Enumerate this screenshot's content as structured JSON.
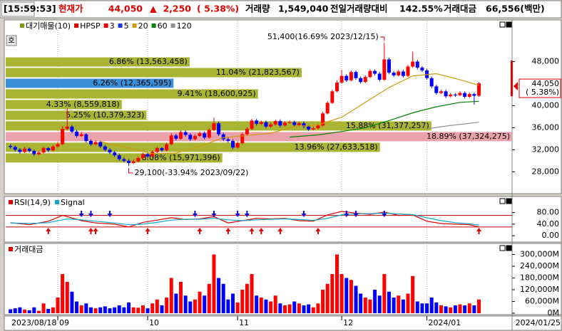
{
  "header": {
    "time": "[15:59:53]",
    "price_title": "현재가",
    "price": "44,050",
    "arrow": "▲",
    "change": "2,250",
    "change_pct": "( 5.38%)",
    "volume_title": "거래량",
    "volume": "1,549,040",
    "ratio_title": "전일거래량대비",
    "ratio": "142.55%",
    "amount_title": "거래대금",
    "amount": "66,556(백만)"
  },
  "chart_data": [
    {
      "type": "candlestick",
      "side_button": "호",
      "up_color": "#ff0000",
      "down_color": "#0000ff",
      "series": [
        {
          "name": "대기매물(10)",
          "color": "#7f9a10"
        },
        {
          "name": "HPSP",
          "color": "#e00000"
        },
        {
          "name": "3",
          "color": "#e00000"
        },
        {
          "name": "5",
          "color": "#1c3cdc"
        },
        {
          "name": "20",
          "color": "#d09a10",
          "x": [
            19,
            25,
            30,
            35,
            40,
            45,
            50,
            55,
            60,
            65,
            70,
            75,
            80,
            85,
            90,
            95,
            99
          ],
          "values": [
            33500,
            32300,
            31300,
            31400,
            32600,
            34200,
            34600,
            35000,
            36200,
            36500,
            37900,
            40600,
            43300,
            45400,
            45800,
            44700,
            43700
          ]
        },
        {
          "name": "60",
          "color": "#008000",
          "x": [
            59,
            65,
            70,
            75,
            80,
            85,
            90,
            95,
            99
          ],
          "values": [
            34300,
            34700,
            35300,
            36000,
            37300,
            38700,
            39800,
            40600,
            40800
          ]
        },
        {
          "name": "120",
          "color": "#909090",
          "x": [
            88,
            92,
            96,
            99
          ],
          "values": [
            35800,
            36300,
            36700,
            37000
          ]
        }
      ],
      "candles": [
        [
          32700,
          33000,
          32200,
          32500
        ],
        [
          32500,
          32800,
          31700,
          32000
        ],
        [
          32000,
          32300,
          31300,
          31600
        ],
        [
          31600,
          32500,
          31400,
          32200
        ],
        [
          32200,
          32400,
          31500,
          31800
        ],
        [
          31800,
          32000,
          30900,
          31200
        ],
        [
          31200,
          31800,
          31000,
          31500
        ],
        [
          31500,
          32600,
          31300,
          32300
        ],
        [
          32300,
          32500,
          31600,
          31900
        ],
        [
          31900,
          32900,
          31700,
          32600
        ],
        [
          32600,
          33400,
          32400,
          33000
        ],
        [
          33000,
          36300,
          32800,
          35800
        ],
        [
          35800,
          39500,
          35500,
          36200
        ],
        [
          36200,
          36500,
          35000,
          35300
        ],
        [
          35300,
          35600,
          34200,
          34500
        ],
        [
          34500,
          35200,
          34300,
          34800
        ],
        [
          34800,
          35000,
          33300,
          33600
        ],
        [
          33600,
          33900,
          32700,
          33000
        ],
        [
          33000,
          33700,
          32800,
          33400
        ],
        [
          33400,
          33600,
          32300,
          32600
        ],
        [
          32600,
          32900,
          31700,
          32000
        ],
        [
          32000,
          32300,
          31200,
          31500
        ],
        [
          31500,
          31800,
          30700,
          31000
        ],
        [
          31000,
          31300,
          30000,
          30300
        ],
        [
          30300,
          30600,
          29700,
          30000
        ],
        [
          30000,
          30300,
          29100,
          29600
        ],
        [
          29600,
          30200,
          29400,
          29900
        ],
        [
          29900,
          30800,
          29700,
          30500
        ],
        [
          30500,
          31500,
          30300,
          31200
        ],
        [
          31200,
          31400,
          30500,
          30800
        ],
        [
          30800,
          31900,
          30600,
          31600
        ],
        [
          31600,
          32600,
          31400,
          32300
        ],
        [
          32300,
          32500,
          31600,
          31900
        ],
        [
          31900,
          33300,
          31700,
          33000
        ],
        [
          33000,
          35000,
          32800,
          34600
        ],
        [
          34600,
          34900,
          33700,
          34000
        ],
        [
          34000,
          35500,
          33800,
          35200
        ],
        [
          35200,
          35500,
          34400,
          34700
        ],
        [
          34700,
          35000,
          33600,
          33900
        ],
        [
          33900,
          34800,
          33700,
          34500
        ],
        [
          34500,
          35300,
          34300,
          35000
        ],
        [
          35000,
          35300,
          33900,
          34200
        ],
        [
          34200,
          35900,
          34000,
          35600
        ],
        [
          35600,
          37800,
          35400,
          36800
        ],
        [
          36800,
          37100,
          34500,
          34800
        ],
        [
          34800,
          35100,
          33600,
          33900
        ],
        [
          33900,
          34200,
          33300,
          33600
        ],
        [
          33600,
          33900,
          32100,
          32400
        ],
        [
          32400,
          33500,
          32200,
          33200
        ],
        [
          33200,
          35100,
          33000,
          34800
        ],
        [
          34800,
          36100,
          34600,
          35800
        ],
        [
          35800,
          37600,
          35600,
          37300
        ],
        [
          37300,
          37600,
          36400,
          36700
        ],
        [
          36700,
          37300,
          36500,
          37000
        ],
        [
          37000,
          37300,
          35900,
          36200
        ],
        [
          36200,
          36900,
          36000,
          36600
        ],
        [
          36600,
          37500,
          36400,
          37200
        ],
        [
          37200,
          37500,
          36100,
          36400
        ],
        [
          36400,
          37200,
          36200,
          36900
        ],
        [
          36900,
          37300,
          36700,
          37000
        ],
        [
          37000,
          37300,
          36200,
          36500
        ],
        [
          36500,
          37100,
          36300,
          36800
        ],
        [
          36800,
          37100,
          35900,
          36200
        ],
        [
          36200,
          36500,
          35400,
          35700
        ],
        [
          35700,
          36200,
          35500,
          35900
        ],
        [
          35900,
          36700,
          35700,
          36400
        ],
        [
          36400,
          38900,
          36200,
          38600
        ],
        [
          38600,
          40800,
          38400,
          40500
        ],
        [
          40500,
          42900,
          40300,
          42600
        ],
        [
          42600,
          44600,
          42400,
          44200
        ],
        [
          44200,
          46500,
          44000,
          45400
        ],
        [
          45400,
          45700,
          44300,
          44600
        ],
        [
          44600,
          46400,
          44400,
          46100
        ],
        [
          46100,
          46400,
          44700,
          45000
        ],
        [
          45000,
          45300,
          44000,
          44300
        ],
        [
          44300,
          45500,
          44100,
          45200
        ],
        [
          45200,
          46600,
          45000,
          46300
        ],
        [
          46300,
          46600,
          45500,
          45800
        ],
        [
          45800,
          46100,
          44400,
          44700
        ],
        [
          44700,
          51400,
          44500,
          48400
        ],
        [
          48400,
          48700,
          45700,
          46000
        ],
        [
          46000,
          46300,
          45200,
          45500
        ],
        [
          45500,
          46500,
          45300,
          46200
        ],
        [
          46200,
          46500,
          45100,
          45400
        ],
        [
          45400,
          47400,
          45200,
          47100
        ],
        [
          47100,
          49800,
          46900,
          48000
        ],
        [
          48000,
          48300,
          46600,
          46900
        ],
        [
          46900,
          47200,
          46100,
          46400
        ],
        [
          46400,
          46700,
          44700,
          45000
        ],
        [
          45000,
          45300,
          43200,
          43500
        ],
        [
          43500,
          43800,
          42000,
          42300
        ],
        [
          42300,
          42900,
          42100,
          42600
        ],
        [
          42600,
          42900,
          41400,
          41700
        ],
        [
          41700,
          42300,
          41500,
          42000
        ],
        [
          42000,
          42300,
          41600,
          41900
        ],
        [
          41900,
          42600,
          41700,
          42300
        ],
        [
          42300,
          42600,
          41300,
          41600
        ],
        [
          41600,
          42400,
          41400,
          42100
        ],
        [
          42100,
          42400,
          40200,
          41800
        ],
        [
          41800,
          44300,
          41600,
          44050
        ]
      ],
      "xlim": [
        -1,
        106
      ],
      "ylim": [
        24300,
        55300
      ],
      "yticks": [
        {
          "value": 28000,
          "label": "28,000"
        },
        {
          "value": 32000,
          "label": "32,000"
        },
        {
          "value": 36000,
          "label": "36,000"
        },
        {
          "value": 40000,
          "label": "40,000"
        },
        {
          "value": 48000,
          "label": "48,000"
        }
      ],
      "volume_profile": {
        "bins": [
          48900,
          46970,
          45030,
          43100,
          41160,
          39230,
          37290,
          35350,
          33420,
          31480,
          29550
        ],
        "values": [
          6.86,
          11.04,
          6.26,
          9.41,
          4.33,
          5.25,
          15.88,
          18.89,
          13.96,
          8.08
        ],
        "value_labels": [
          "6.86% (13,563,458)",
          "11.04% (21,823,567)",
          "6.26% (12,365,595)",
          "9.41% (18,600,925)",
          "4.33% (8,559,818)",
          "5.25% (10,379,323)",
          "15.88% (31,377,257)",
          "18.89% (37,324,275)",
          "13.96% (27,633,518)",
          "8.08% (15,971,396)"
        ],
        "colors": [
          "#a8b432",
          "#a8b432",
          "#3b8fd6",
          "#a8b432",
          "#a8b432",
          "#a8b432",
          "#a8b432",
          "#eaa2aa",
          "#a8b432",
          "#a8b432"
        ]
      },
      "annotations": [
        {
          "text": "51,400(16.69% 2023/12/15)",
          "x": 79,
          "y": 51400
        },
        {
          "text": "29,100(-33.94% 2023/09/22)",
          "x": 25,
          "y": 29100
        }
      ],
      "last_label": {
        "value": 44050,
        "label": "44,050"
      },
      "last_change": "( 5.38%)"
    },
    {
      "type": "line",
      "xlim": [
        -1,
        106
      ],
      "ylim": [
        -17,
        116
      ],
      "yticks": [
        {
          "value": 0,
          "label": "0.00"
        },
        {
          "value": 40,
          "label": "40.00"
        },
        {
          "value": 80,
          "label": "80.00"
        }
      ],
      "hlines": [
        70,
        30
      ],
      "hline_color": "#c00000",
      "series": [
        {
          "name": "RSI(14,9)",
          "color": "#e00000",
          "x": [
            0,
            4,
            8,
            11,
            12,
            15,
            18,
            22,
            25,
            28,
            31,
            34,
            37,
            40,
            43,
            46,
            49,
            52,
            55,
            58,
            61,
            64,
            67,
            70,
            73,
            76,
            79,
            82,
            85,
            88,
            91,
            94,
            97,
            99
          ],
          "values": [
            45,
            38,
            50,
            70,
            66,
            52,
            44,
            40,
            30,
            46,
            54,
            62,
            56,
            58,
            66,
            44,
            52,
            60,
            58,
            60,
            52,
            50,
            72,
            84,
            78,
            74,
            82,
            70,
            72,
            50,
            42,
            40,
            38,
            30
          ]
        },
        {
          "name": "Signal",
          "color": "#10a8c8",
          "x": [
            0,
            4,
            8,
            11,
            12,
            15,
            18,
            22,
            25,
            28,
            31,
            34,
            37,
            40,
            43,
            46,
            49,
            52,
            55,
            58,
            61,
            64,
            67,
            70,
            73,
            76,
            79,
            82,
            85,
            88,
            91,
            94,
            97,
            99
          ],
          "values": [
            44,
            42,
            45,
            55,
            58,
            55,
            50,
            44,
            38,
            40,
            46,
            54,
            57,
            57,
            60,
            55,
            52,
            55,
            57,
            58,
            56,
            53,
            60,
            72,
            76,
            76,
            78,
            75,
            73,
            62,
            52,
            45,
            41,
            37
          ]
        }
      ],
      "buy_signals": [
        8,
        17,
        18,
        29,
        40,
        46,
        51,
        53,
        57,
        65,
        99
      ],
      "sell_signals": [
        15,
        17,
        21,
        39,
        43,
        48,
        50,
        62,
        71,
        73,
        79
      ]
    },
    {
      "type": "bar",
      "title": "거래대금",
      "color": "#e00000",
      "xlim": [
        -1,
        106
      ],
      "ylim": [
        0,
        342000
      ],
      "yticks": [
        {
          "value": 0,
          "label": "0M"
        },
        {
          "value": 60000,
          "label": "60,000M"
        },
        {
          "value": 120000,
          "label": "120,000M"
        },
        {
          "value": 180000,
          "label": "180,000M"
        },
        {
          "value": 240000,
          "label": "240,000M"
        },
        {
          "value": 300000,
          "label": "300,000M"
        }
      ],
      "values": [
        20000,
        25000,
        30000,
        18000,
        15000,
        30000,
        12000,
        50000,
        22000,
        30000,
        80000,
        200000,
        160000,
        110000,
        60000,
        40000,
        50000,
        30000,
        25000,
        30000,
        35000,
        25000,
        30000,
        40000,
        30000,
        55000,
        30000,
        28000,
        40000,
        25000,
        50000,
        70000,
        40000,
        80000,
        180000,
        100000,
        160000,
        90000,
        60000,
        70000,
        110000,
        90000,
        150000,
        300000,
        180000,
        150000,
        70000,
        100000,
        55000,
        120000,
        150000,
        200000,
        90000,
        80000,
        70000,
        60000,
        90000,
        50000,
        40000,
        45000,
        60000,
        50000,
        40000,
        45000,
        30000,
        50000,
        120000,
        150000,
        200000,
        300000,
        200000,
        180000,
        170000,
        140000,
        100000,
        80000,
        70000,
        120000,
        90000,
        200000,
        110000,
        80000,
        90000,
        70000,
        100000,
        190000,
        60000,
        50000,
        50000,
        80000,
        55000,
        40000,
        35000,
        30000,
        40000,
        45000,
        40000,
        50000,
        40000,
        70000
      ],
      "xticks": [
        {
          "value": 10,
          "label": "09"
        },
        {
          "value": 29,
          "label": "10"
        },
        {
          "value": 48,
          "label": "11"
        },
        {
          "value": 70,
          "label": "12"
        },
        {
          "value": 88,
          "label": "2024/01"
        }
      ],
      "start_date": "2023/08/18",
      "end_date": "2024/01/25"
    }
  ]
}
